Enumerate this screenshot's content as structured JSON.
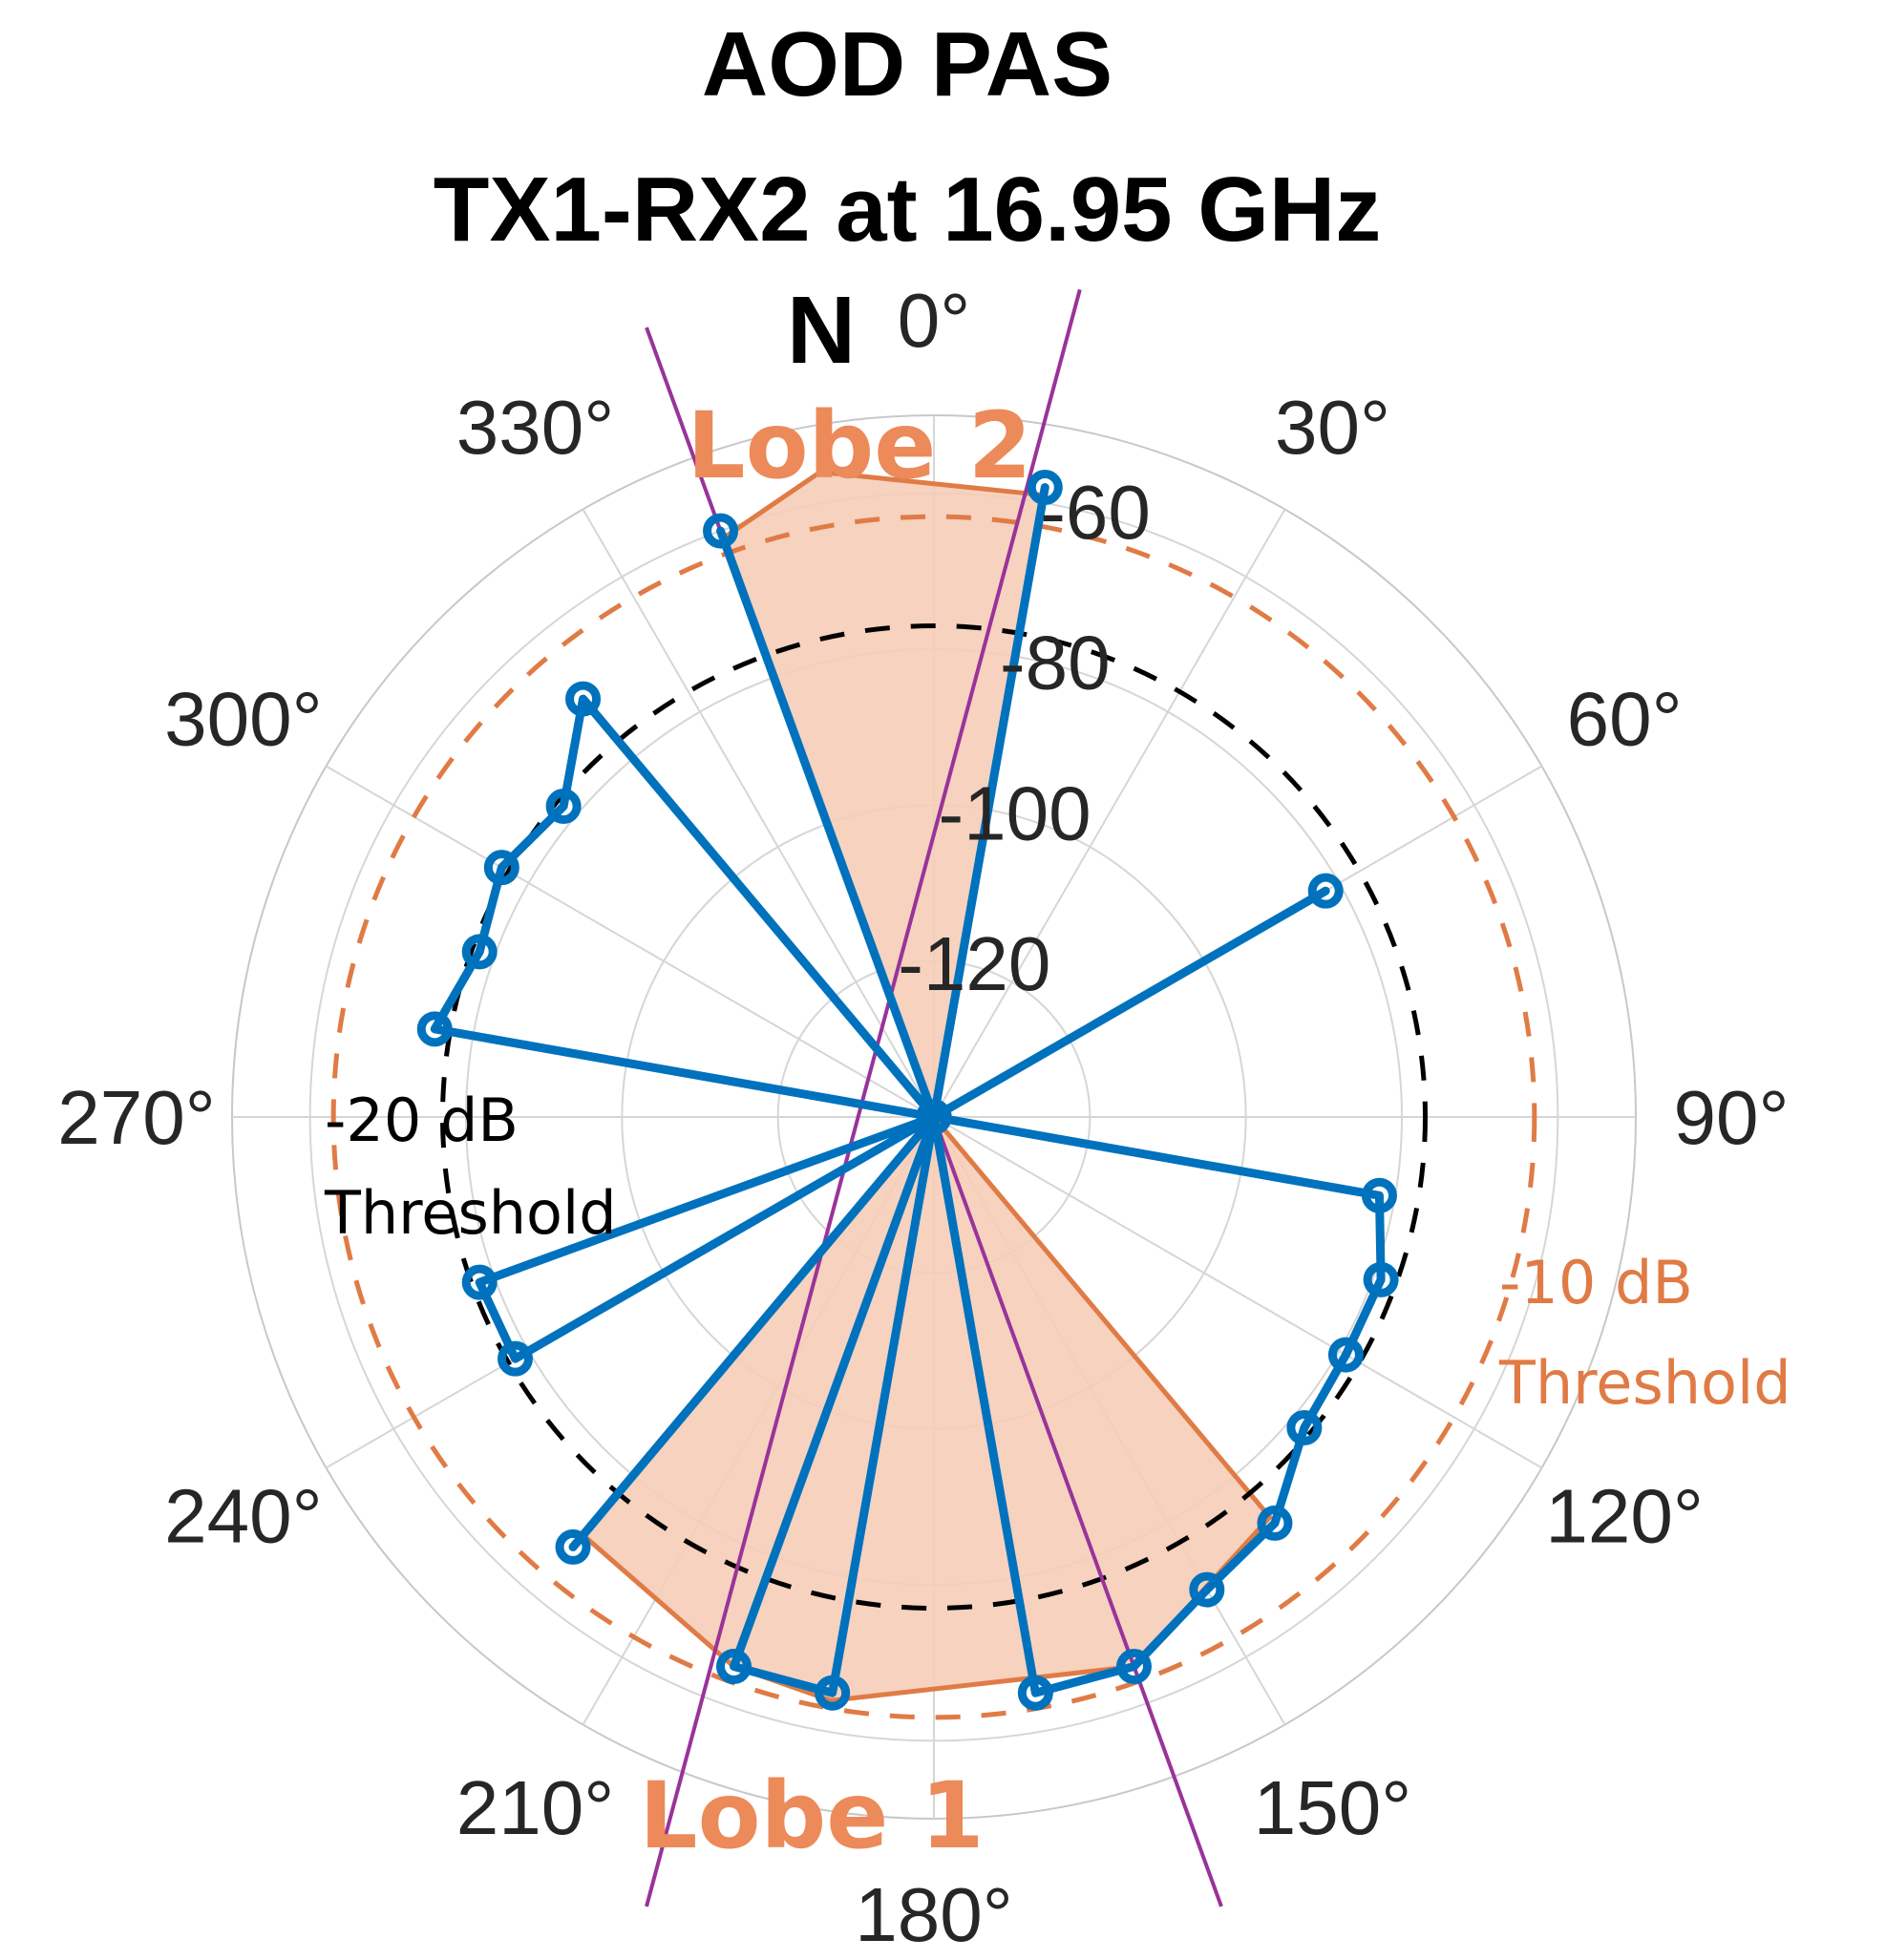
{
  "chart_data": {
    "type": "polar",
    "title": [
      "AOD PAS",
      "TX1-RX2 at 16.95 GHz"
    ],
    "north_label": "N",
    "angle_ticks": [
      {
        "deg": 0,
        "label": "0°"
      },
      {
        "deg": 30,
        "label": "30°"
      },
      {
        "deg": 60,
        "label": "60°"
      },
      {
        "deg": 90,
        "label": "90°"
      },
      {
        "deg": 120,
        "label": "120°"
      },
      {
        "deg": 150,
        "label": "150°"
      },
      {
        "deg": 180,
        "label": "180°"
      },
      {
        "deg": 210,
        "label": "210°"
      },
      {
        "deg": 240,
        "label": "240°"
      },
      {
        "deg": 270,
        "label": "270°"
      },
      {
        "deg": 300,
        "label": "300°"
      },
      {
        "deg": 330,
        "label": "330°"
      }
    ],
    "angle_direction": "clockwise",
    "zero_location": "top",
    "radial_ticks": [
      {
        "value": -120,
        "label": "-120"
      },
      {
        "value": -100,
        "label": "-100"
      },
      {
        "value": -80,
        "label": "-80"
      },
      {
        "value": -60,
        "label": "-60"
      }
    ],
    "rlim": [
      -140,
      -50
    ],
    "grid": true,
    "series": [
      {
        "role": "pas",
        "color": "#0072bd",
        "points": [
          [
            0,
            -140
          ],
          [
            10,
            -58
          ],
          [
            20,
            -140
          ],
          [
            30,
            -140
          ],
          [
            40,
            -140
          ],
          [
            50,
            -140
          ],
          [
            60,
            -82
          ],
          [
            70,
            -140
          ],
          [
            80,
            -140
          ],
          [
            90,
            -140
          ],
          [
            100,
            -82
          ],
          [
            110,
            -79
          ],
          [
            120,
            -79
          ],
          [
            130,
            -78
          ],
          [
            140,
            -72
          ],
          [
            150,
            -70
          ],
          [
            160,
            -65
          ],
          [
            170,
            -65
          ],
          [
            180,
            -140
          ],
          [
            190,
            -65
          ],
          [
            200,
            -65
          ],
          [
            210,
            -140
          ],
          [
            220,
            -68
          ],
          [
            230,
            -140
          ],
          [
            240,
            -78
          ],
          [
            250,
            -78
          ],
          [
            260,
            -140
          ],
          [
            270,
            -140
          ],
          [
            280,
            -75
          ],
          [
            290,
            -78
          ],
          [
            300,
            -76
          ],
          [
            310,
            -78
          ],
          [
            320,
            -70
          ],
          [
            330,
            -140
          ],
          [
            340,
            -60
          ],
          [
            350,
            -140
          ]
        ]
      }
    ],
    "lobes": [
      {
        "label": "Lobe 2",
        "points": [
          [
            0,
            -140
          ],
          [
            340,
            -61
          ],
          [
            350,
            -56
          ],
          [
            10,
            -59
          ],
          [
            0,
            -140
          ]
        ]
      },
      {
        "label": "Lobe 1",
        "points": [
          [
            0,
            -140
          ],
          [
            140,
            -73
          ],
          [
            160,
            -65
          ],
          [
            190,
            -64
          ],
          [
            200,
            -65
          ],
          [
            220,
            -70
          ],
          [
            0,
            -140
          ]
        ]
      }
    ],
    "lobe_boundaries_deg": [
      [
        160,
        340
      ],
      [
        10,
        200
      ]
    ],
    "thresholds": [
      {
        "label": [
          "-10 dB",
          "Threshold"
        ],
        "value": -63,
        "color": "#e07b45"
      },
      {
        "label": [
          "-20 dB",
          "Threshold"
        ],
        "value": -77,
        "color": "#000000"
      }
    ],
    "lobe_fill_color": "#f5cdb8",
    "lobe_edge_color": "#e07b45",
    "boundary_color": "#993399"
  }
}
